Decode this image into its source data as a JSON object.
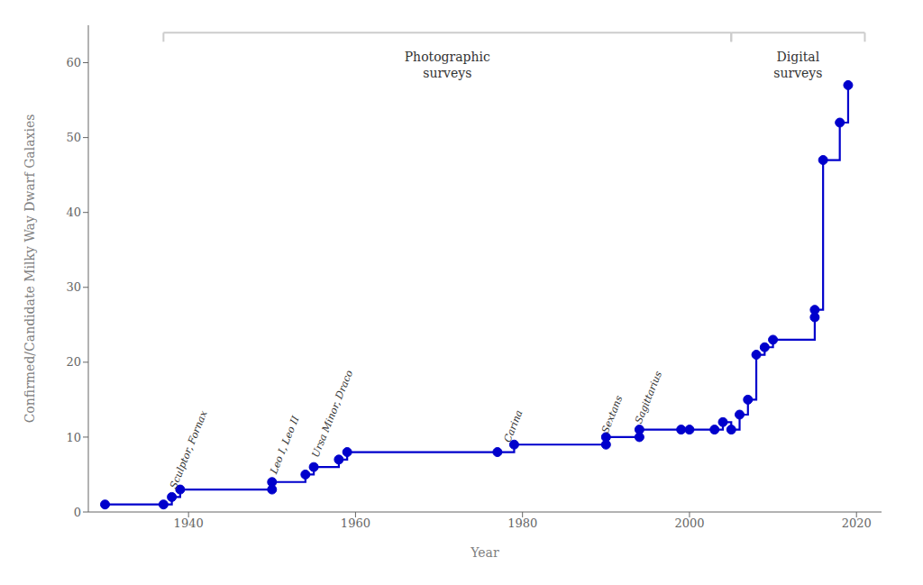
{
  "chart_data": {
    "type": "step",
    "x": [
      1930,
      1937,
      1938,
      1939,
      1950,
      1950,
      1954,
      1955,
      1958,
      1959,
      1977,
      1979,
      1990,
      1990,
      1994,
      1994,
      1999,
      2000,
      2003,
      2004,
      2005,
      2006,
      2007,
      2008,
      2009,
      2010,
      2015,
      2015,
      2016,
      2018,
      2019
    ],
    "values": [
      1,
      1,
      2,
      3,
      3,
      4,
      5,
      6,
      7,
      8,
      8,
      9,
      9,
      10,
      10,
      11,
      11,
      11,
      11,
      12,
      11,
      13,
      15,
      21,
      22,
      23,
      26,
      27,
      47,
      52,
      57
    ],
    "color": "#0000cc",
    "marker": "circle",
    "xlabel": "Year",
    "ylabel": "Confirmed/Candidate Milky Way Dwarf Galaxies",
    "xlim": [
      1928,
      2023
    ],
    "ylim": [
      0,
      65
    ],
    "xticks": [
      1940,
      1960,
      1980,
      2000,
      2020
    ],
    "yticks": [
      0,
      10,
      20,
      30,
      40,
      50,
      60
    ],
    "grid": false,
    "annotations": [
      {
        "text": "Sculptor, Fornax",
        "x": 1938.5,
        "y": 3.0
      },
      {
        "text": "Leo I, Leo II",
        "x": 1950.5,
        "y": 5.0
      },
      {
        "text": "Ursa Minor, Draco",
        "x": 1955.5,
        "y": 7.2
      },
      {
        "text": "Carina",
        "x": 1978.5,
        "y": 9.2
      },
      {
        "text": "Sextans",
        "x": 1990.2,
        "y": 10.4
      },
      {
        "text": "Sagittarius",
        "x": 1994.2,
        "y": 11.7
      }
    ],
    "spans": [
      {
        "text": "Photographic\nsurveys",
        "start": 1937,
        "end": 2005,
        "y": 64.0
      },
      {
        "text": "Digital\nsurveys",
        "start": 2005,
        "end": 2021,
        "y": 64.0
      }
    ]
  }
}
